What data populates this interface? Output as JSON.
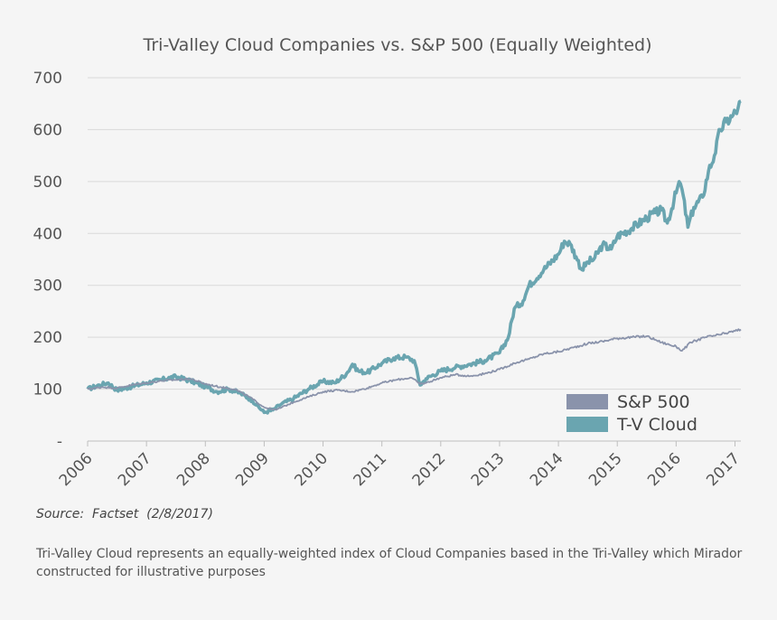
{
  "chart_data": {
    "type": "line",
    "title": "Tri-Valley Cloud Companies vs. S&P 500 (Equally Weighted)",
    "xlabel": "",
    "ylabel": "",
    "ylim": [
      0,
      700
    ],
    "xlim": [
      2006,
      2017.1
    ],
    "y_ticks": [
      {
        "value": 0,
        "label": "-"
      },
      {
        "value": 100,
        "label": "100"
      },
      {
        "value": 200,
        "label": "200"
      },
      {
        "value": 300,
        "label": "300"
      },
      {
        "value": 400,
        "label": "400"
      },
      {
        "value": 500,
        "label": "500"
      },
      {
        "value": 600,
        "label": "600"
      },
      {
        "value": 700,
        "label": "700"
      }
    ],
    "x_ticks": [
      "2006",
      "2007",
      "2008",
      "2009",
      "2010",
      "2011",
      "2012",
      "2013",
      "2014",
      "2015",
      "2016",
      "2017"
    ],
    "grid": "horizontal",
    "legend_position": "bottom-right",
    "series": [
      {
        "name": "S&P 500",
        "color": "#8a93ab",
        "x": [
          2006.0,
          2006.25,
          2006.5,
          2006.75,
          2007.0,
          2007.25,
          2007.5,
          2007.75,
          2008.0,
          2008.25,
          2008.5,
          2008.75,
          2009.0,
          2009.2,
          2009.5,
          2009.75,
          2010.0,
          2010.25,
          2010.5,
          2010.75,
          2011.0,
          2011.25,
          2011.5,
          2011.65,
          2011.75,
          2012.0,
          2012.25,
          2012.5,
          2012.75,
          2013.0,
          2013.25,
          2013.5,
          2013.75,
          2014.0,
          2014.25,
          2014.5,
          2014.75,
          2015.0,
          2015.25,
          2015.5,
          2015.65,
          2015.75,
          2016.0,
          2016.1,
          2016.25,
          2016.5,
          2016.75,
          2017.0,
          2017.1
        ],
        "values": [
          100,
          104,
          102,
          108,
          112,
          116,
          118,
          120,
          110,
          104,
          100,
          85,
          65,
          60,
          75,
          85,
          95,
          98,
          95,
          102,
          112,
          118,
          122,
          110,
          112,
          122,
          128,
          125,
          130,
          138,
          150,
          158,
          168,
          172,
          180,
          188,
          192,
          198,
          200,
          202,
          195,
          190,
          182,
          174,
          190,
          200,
          205,
          212,
          215
        ]
      },
      {
        "name": "T-V Cloud",
        "color": "#6aa5b0",
        "x": [
          2006.0,
          2006.2,
          2006.35,
          2006.5,
          2006.75,
          2007.0,
          2007.25,
          2007.4,
          2007.5,
          2007.75,
          2008.0,
          2008.2,
          2008.4,
          2008.6,
          2008.8,
          2009.0,
          2009.15,
          2009.3,
          2009.5,
          2009.75,
          2010.0,
          2010.2,
          2010.4,
          2010.5,
          2010.6,
          2010.75,
          2011.0,
          2011.2,
          2011.4,
          2011.55,
          2011.65,
          2011.75,
          2012.0,
          2012.25,
          2012.5,
          2012.75,
          2013.0,
          2013.15,
          2013.25,
          2013.4,
          2013.5,
          2013.75,
          2014.0,
          2014.1,
          2014.2,
          2014.3,
          2014.4,
          2014.5,
          2014.6,
          2014.75,
          2014.9,
          2015.0,
          2015.25,
          2015.5,
          2015.65,
          2015.75,
          2015.85,
          2016.0,
          2016.05,
          2016.1,
          2016.2,
          2016.3,
          2016.45,
          2016.55,
          2016.65,
          2016.75,
          2016.85,
          2016.95,
          2017.05,
          2017.1
        ],
        "values": [
          100,
          108,
          112,
          98,
          105,
          112,
          118,
          122,
          124,
          116,
          105,
          95,
          100,
          92,
          78,
          55,
          60,
          72,
          82,
          100,
          115,
          112,
          130,
          148,
          135,
          132,
          150,
          160,
          162,
          155,
          108,
          120,
          135,
          142,
          148,
          155,
          170,
          200,
          255,
          270,
          300,
          330,
          360,
          385,
          380,
          355,
          330,
          345,
          350,
          378,
          370,
          395,
          410,
          430,
          440,
          445,
          420,
          478,
          500,
          485,
          412,
          450,
          470,
          520,
          550,
          600,
          615,
          625,
          640,
          655
        ]
      }
    ]
  },
  "source_text": "Source:  Factset  (2/8/2017)",
  "footnote": "Tri-Valley Cloud represents an equally-weighted index of Cloud Companies based in the Tri-Valley which Mirador constructed for illustrative purposes"
}
